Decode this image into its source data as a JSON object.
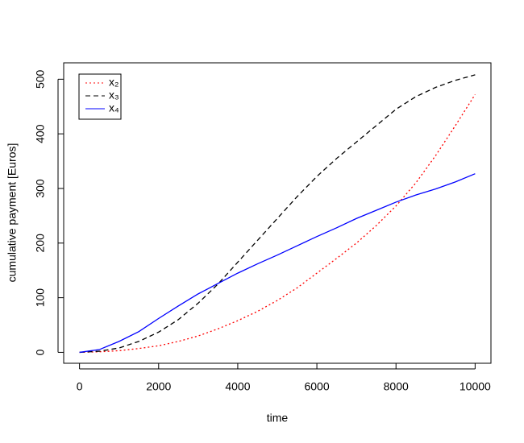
{
  "chart_data": {
    "type": "line",
    "xlabel": "time",
    "ylabel": "cumulative payment [Euros]",
    "x": [
      0,
      500,
      1000,
      1500,
      2000,
      2500,
      3000,
      3500,
      4000,
      4500,
      5000,
      5500,
      6000,
      6500,
      7000,
      7500,
      8000,
      8500,
      9000,
      9500,
      10000
    ],
    "series": [
      {
        "name": "x₂",
        "color": "#ff0000",
        "linestyle": "dotted",
        "values": [
          0,
          1,
          3,
          7,
          12,
          20,
          30,
          43,
          58,
          75,
          95,
          118,
          145,
          172,
          200,
          232,
          268,
          310,
          360,
          415,
          472
        ]
      },
      {
        "name": "x₃",
        "color": "#000000",
        "linestyle": "dashed",
        "values": [
          0,
          2,
          8,
          20,
          37,
          60,
          90,
          125,
          165,
          205,
          245,
          285,
          322,
          355,
          385,
          415,
          445,
          468,
          485,
          498,
          508
        ]
      },
      {
        "name": "x₄",
        "color": "#0000ff",
        "linestyle": "solid",
        "values": [
          0,
          5,
          20,
          38,
          62,
          85,
          107,
          126,
          145,
          162,
          178,
          195,
          212,
          228,
          245,
          260,
          275,
          288,
          299,
          312,
          327
        ]
      }
    ],
    "xlim": [
      -400,
      10400
    ],
    "ylim": [
      -20,
      530
    ],
    "xticks": [
      0,
      2000,
      4000,
      6000,
      8000,
      10000
    ],
    "yticks": [
      0,
      100,
      200,
      300,
      400,
      500
    ],
    "legend": "top-left",
    "grid": false
  }
}
